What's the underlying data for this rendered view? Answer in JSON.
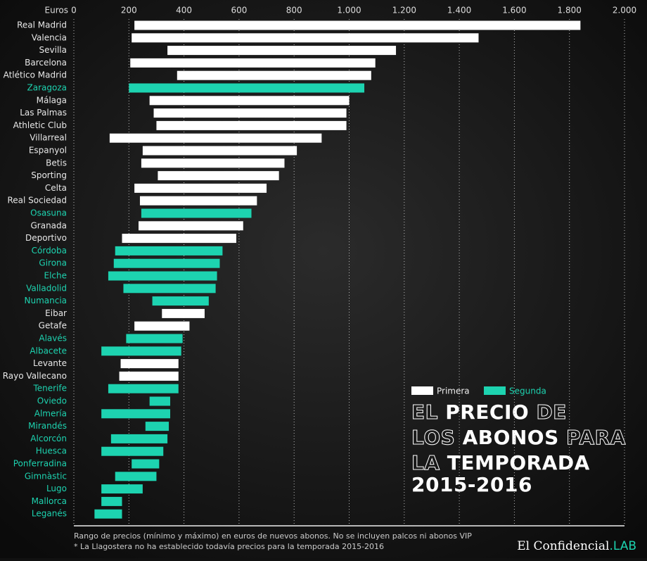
{
  "chart_data": {
    "type": "range-bar",
    "axis_label": "Euros",
    "title": [
      [
        "EL",
        "PRECIO",
        "DE"
      ],
      [
        "LOS",
        "ABONOS",
        "PARA"
      ],
      [
        "LA",
        "TEMPORADA"
      ],
      [
        "2015-2016"
      ]
    ],
    "notes": [
      "Rango de precios (mínimo y máximo) en euros de nuevos abonos. No se incluyen palcos ni abonos VIP",
      "* La Llagostera no ha establecido todavía precios para la temporada 2015-2016"
    ],
    "logo": [
      "El Confidencial",
      ".LAB"
    ],
    "xlim": [
      0,
      2000
    ],
    "xticks": [
      0,
      200,
      400,
      600,
      800,
      {
        "value": 1000,
        "label": "1.000"
      },
      {
        "value": 1200,
        "label": "1.200"
      },
      {
        "value": 1400,
        "label": "1.400"
      },
      {
        "value": 1600,
        "label": "1.600"
      },
      {
        "value": 1800,
        "label": "1.800"
      },
      {
        "value": 2000,
        "label": "2.000"
      }
    ],
    "grid": true,
    "categories": [
      "Real Madrid",
      "Valencia",
      "Sevilla",
      "Barcelona",
      "Atlético Madrid",
      "Zaragoza",
      "Málaga",
      "Las Palmas",
      "Athletic Club",
      "Villarreal",
      "Espanyol",
      "Betis",
      "Sporting",
      "Celta",
      "Real Sociedad",
      "Osasuna",
      "Granada",
      "Deportivo",
      "Córdoba",
      "Girona",
      "Elche",
      "Valladolid",
      "Numancia",
      "Eibar",
      "Getafe",
      "Alavés",
      "Albacete",
      "Levante",
      "Rayo Vallecano",
      "Tenerife",
      "Oviedo",
      "Almería",
      "Mirandés",
      "Alcorcón",
      "Huesca",
      "Ponferradina",
      "Gimnàstic",
      "Lugo",
      "Mallorca",
      "Leganés"
    ],
    "series": [
      {
        "name": "Primera",
        "color": "#ffffff",
        "low": [
          220,
          210,
          340,
          205,
          375,
          null,
          275,
          290,
          300,
          130,
          250,
          245,
          305,
          220,
          240,
          null,
          235,
          175,
          null,
          null,
          null,
          null,
          null,
          320,
          220,
          null,
          null,
          170,
          165,
          null,
          null,
          null,
          null,
          null,
          null,
          null,
          null,
          null,
          null,
          null
        ],
        "high": [
          1840,
          1470,
          1170,
          1095,
          1080,
          null,
          1000,
          990,
          990,
          900,
          810,
          765,
          745,
          700,
          665,
          null,
          615,
          590,
          null,
          null,
          null,
          null,
          null,
          475,
          420,
          null,
          null,
          380,
          380,
          null,
          null,
          null,
          null,
          null,
          null,
          null,
          null,
          null,
          null,
          null
        ]
      },
      {
        "name": "Segunda",
        "color": "#1dd3b0",
        "low": [
          null,
          null,
          null,
          null,
          null,
          200,
          null,
          null,
          null,
          null,
          null,
          null,
          null,
          null,
          null,
          245,
          null,
          null,
          150,
          145,
          125,
          180,
          285,
          null,
          null,
          190,
          100,
          null,
          null,
          125,
          275,
          100,
          260,
          135,
          100,
          210,
          150,
          100,
          100,
          75
        ],
        "high": [
          null,
          null,
          null,
          null,
          null,
          1055,
          null,
          null,
          null,
          null,
          null,
          null,
          null,
          null,
          null,
          645,
          null,
          null,
          540,
          530,
          520,
          515,
          490,
          null,
          null,
          395,
          390,
          null,
          null,
          380,
          350,
          350,
          345,
          340,
          325,
          310,
          300,
          250,
          175,
          175
        ]
      }
    ]
  }
}
